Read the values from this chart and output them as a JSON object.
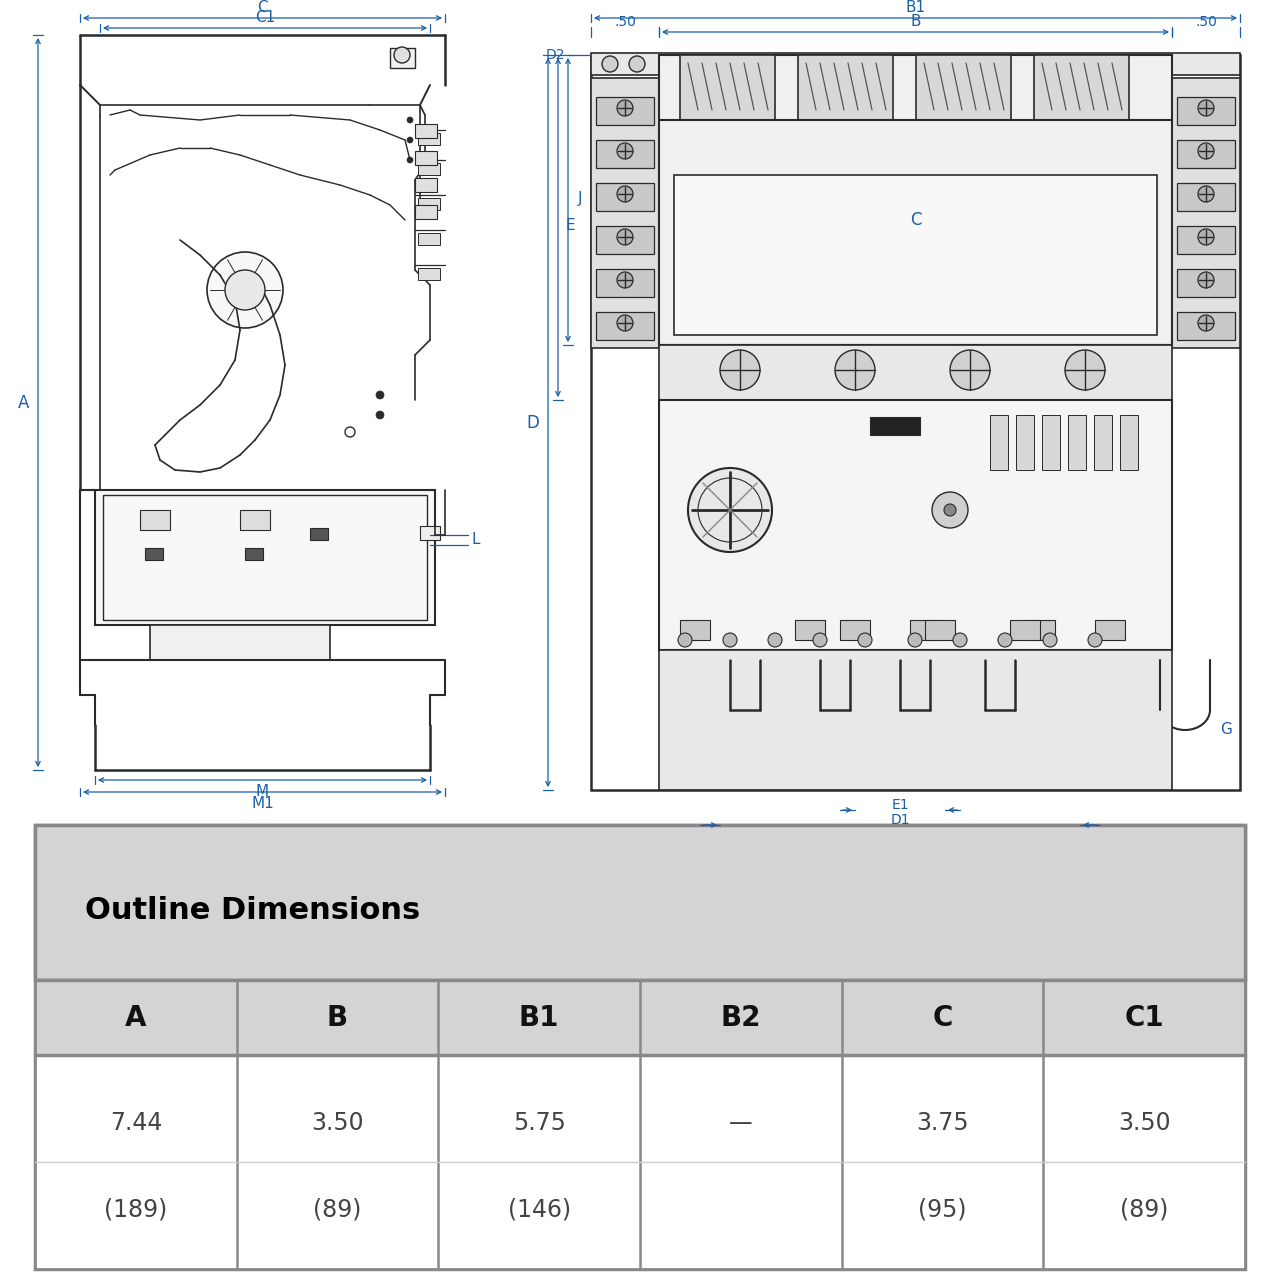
{
  "table_title": "Outline Dimensions",
  "columns": [
    "A",
    "B",
    "B1",
    "B2",
    "C",
    "C1"
  ],
  "row1": [
    "7.44",
    "3.50",
    "5.75",
    "—",
    "3.75",
    "3.50"
  ],
  "row2": [
    "(189)",
    "(89)",
    "(146)",
    "",
    "(95)",
    "(89)"
  ],
  "bg_color": "#ffffff",
  "draw_color": "#2a2a2a",
  "blue_dim": "#1a5fa8",
  "table_outer_bg": "#c8c8c8",
  "table_header_bg": "#d0d0d0",
  "table_col_bg": "#d0d0d0",
  "table_data_bg": "#ffffff",
  "table_border": "#555555"
}
